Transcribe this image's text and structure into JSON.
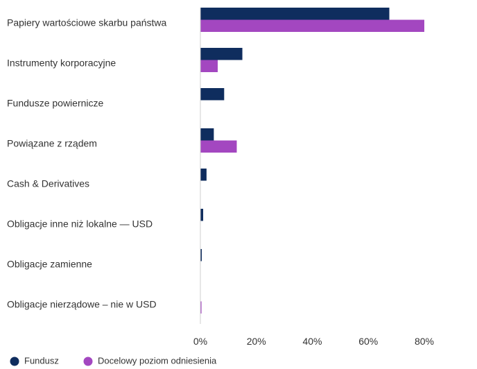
{
  "chart_data": {
    "type": "bar",
    "orientation": "horizontal",
    "categories": [
      "Papiery wartościowe skarbu państwa",
      "Instrumenty korporacyjne",
      "Fundusze powiernicze",
      "Powiązane z rządem",
      "Cash & Derivatives",
      "Obligacje inne niż lokalne — USD",
      "Obligacje zamienne",
      "Obligacje nierządowe – nie w USD"
    ],
    "series": [
      {
        "name": "Fundusz",
        "color": "#0f2d5e",
        "values": [
          67.5,
          15.0,
          8.5,
          4.8,
          2.2,
          1.0,
          0.5,
          0.0
        ]
      },
      {
        "name": "Docelowy poziom odniesienia",
        "color": "#a347c0",
        "values": [
          80.0,
          6.2,
          0.0,
          13.0,
          0.0,
          0.0,
          0.0,
          0.4
        ]
      }
    ],
    "xlim": [
      0,
      100
    ],
    "xticks": [
      0,
      20,
      40,
      60,
      80
    ],
    "tick_labels": [
      "0%",
      "20%",
      "40%",
      "60%",
      "80%"
    ],
    "grid": false,
    "legend_position": "bottom-left"
  }
}
